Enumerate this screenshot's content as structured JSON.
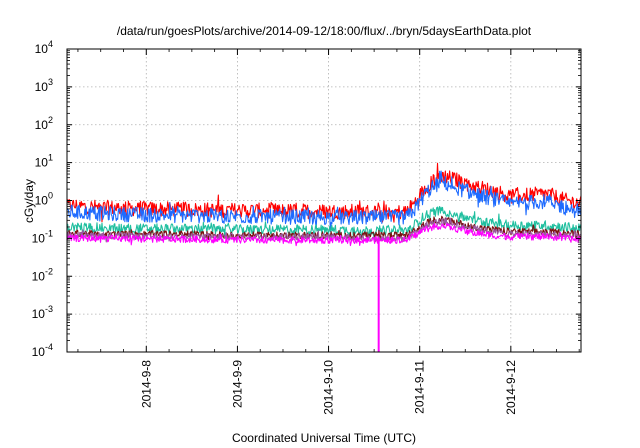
{
  "chart_data": {
    "type": "line",
    "title": "/data/run/goesPlots/archive/2014-09-12/18:00/flux/../bryn/5daysEarthData.plot",
    "xlabel": "Coordinated Universal Time (UTC)",
    "ylabel": "cGy/day",
    "y_scale": "log",
    "ylim": [
      0.0001,
      10000
    ],
    "xlim": [
      -0.87,
      4.77
    ],
    "grid": true,
    "x_ticks": [
      {
        "value": 0,
        "label": "2014-9-8"
      },
      {
        "value": 1,
        "label": "2014-9-9"
      },
      {
        "value": 2,
        "label": "2014-9-10"
      },
      {
        "value": 3,
        "label": "2014-9-11"
      },
      {
        "value": 4,
        "label": "2014-9-12"
      }
    ],
    "y_ticks": [
      {
        "value": 0.0001,
        "base": "10",
        "exp": "-4"
      },
      {
        "value": 0.001,
        "base": "10",
        "exp": "-3"
      },
      {
        "value": 0.01,
        "base": "10",
        "exp": "-2"
      },
      {
        "value": 0.1,
        "base": "10",
        "exp": "-1"
      },
      {
        "value": 1,
        "base": "10",
        "exp": "0"
      },
      {
        "value": 10,
        "base": "10",
        "exp": "1"
      },
      {
        "value": 100,
        "base": "10",
        "exp": "2"
      },
      {
        "value": 1000,
        "base": "10",
        "exp": "3"
      },
      {
        "value": 10000,
        "base": "10",
        "exp": "4"
      }
    ],
    "series": [
      {
        "color": "#ff0000",
        "x": [
          -0.87,
          -0.5,
          0,
          0.5,
          1,
          1.5,
          2,
          2.5,
          2.85,
          2.95,
          3.05,
          3.15,
          3.25,
          3.4,
          3.6,
          3.8,
          4.0,
          4.2,
          4.4,
          4.6,
          4.77
        ],
        "y": [
          0.75,
          0.65,
          0.6,
          0.57,
          0.55,
          0.53,
          0.52,
          0.5,
          0.5,
          0.9,
          2.0,
          3.5,
          4.5,
          3.5,
          2.4,
          1.8,
          1.3,
          1.4,
          1.5,
          1.0,
          0.85
        ]
      },
      {
        "color": "#1e6bff",
        "x": [
          -0.87,
          -0.5,
          0,
          0.5,
          1,
          1.5,
          2,
          2.5,
          2.85,
          2.95,
          3.05,
          3.15,
          3.25,
          3.4,
          3.6,
          3.8,
          4.0,
          4.2,
          4.4,
          4.6,
          4.77
        ],
        "y": [
          0.5,
          0.45,
          0.42,
          0.4,
          0.38,
          0.37,
          0.36,
          0.35,
          0.35,
          0.6,
          1.4,
          2.4,
          3.0,
          2.2,
          1.5,
          1.1,
          0.8,
          0.9,
          0.95,
          0.65,
          0.5
        ]
      },
      {
        "color": "#1fbf9f",
        "x": [
          -0.87,
          -0.5,
          0,
          0.5,
          1,
          1.5,
          2,
          2.5,
          2.85,
          2.95,
          3.05,
          3.15,
          3.25,
          3.4,
          3.6,
          3.8,
          4.0,
          4.2,
          4.4,
          4.6,
          4.77
        ],
        "y": [
          0.2,
          0.19,
          0.18,
          0.18,
          0.17,
          0.17,
          0.17,
          0.16,
          0.16,
          0.24,
          0.38,
          0.5,
          0.55,
          0.42,
          0.3,
          0.25,
          0.22,
          0.22,
          0.22,
          0.2,
          0.18
        ]
      },
      {
        "color": "#7a1010",
        "x": [
          -0.87,
          -0.5,
          0,
          0.5,
          1,
          1.5,
          2,
          2.5,
          2.85,
          2.95,
          3.05,
          3.15,
          3.25,
          3.4,
          3.6,
          3.8,
          4.0,
          4.2,
          4.4,
          4.6,
          4.77
        ],
        "y": [
          0.14,
          0.13,
          0.13,
          0.13,
          0.12,
          0.12,
          0.12,
          0.12,
          0.12,
          0.16,
          0.24,
          0.3,
          0.32,
          0.26,
          0.2,
          0.17,
          0.15,
          0.15,
          0.15,
          0.14,
          0.13
        ]
      },
      {
        "color": "#9a5aa0",
        "x": [
          -0.87,
          -0.5,
          0,
          0.5,
          1,
          1.5,
          2,
          2.5,
          2.85,
          2.95,
          3.05,
          3.15,
          3.25,
          3.4,
          3.6,
          3.8,
          4.0,
          4.2,
          4.4,
          4.6,
          4.77
        ],
        "y": [
          0.12,
          0.12,
          0.11,
          0.11,
          0.11,
          0.11,
          0.11,
          0.1,
          0.1,
          0.14,
          0.21,
          0.26,
          0.28,
          0.23,
          0.18,
          0.15,
          0.13,
          0.13,
          0.13,
          0.12,
          0.11
        ]
      },
      {
        "color": "#ff00ff",
        "x": [
          -0.87,
          -0.5,
          0,
          0.5,
          1,
          1.5,
          2,
          2.5,
          2.85,
          2.95,
          3.05,
          3.15,
          3.25,
          3.4,
          3.6,
          3.8,
          4.0,
          4.2,
          4.4,
          4.6,
          4.77
        ],
        "y": [
          0.1,
          0.1,
          0.095,
          0.095,
          0.09,
          0.09,
          0.09,
          0.09,
          0.09,
          0.12,
          0.17,
          0.2,
          0.22,
          0.18,
          0.14,
          0.12,
          0.11,
          0.11,
          0.11,
          0.1,
          0.09
        ]
      }
    ],
    "annotations": [
      {
        "type": "dropout",
        "color": "#ff00ff",
        "x": 2.55,
        "y_from": 0.1,
        "y_to": 0.0001
      }
    ]
  }
}
